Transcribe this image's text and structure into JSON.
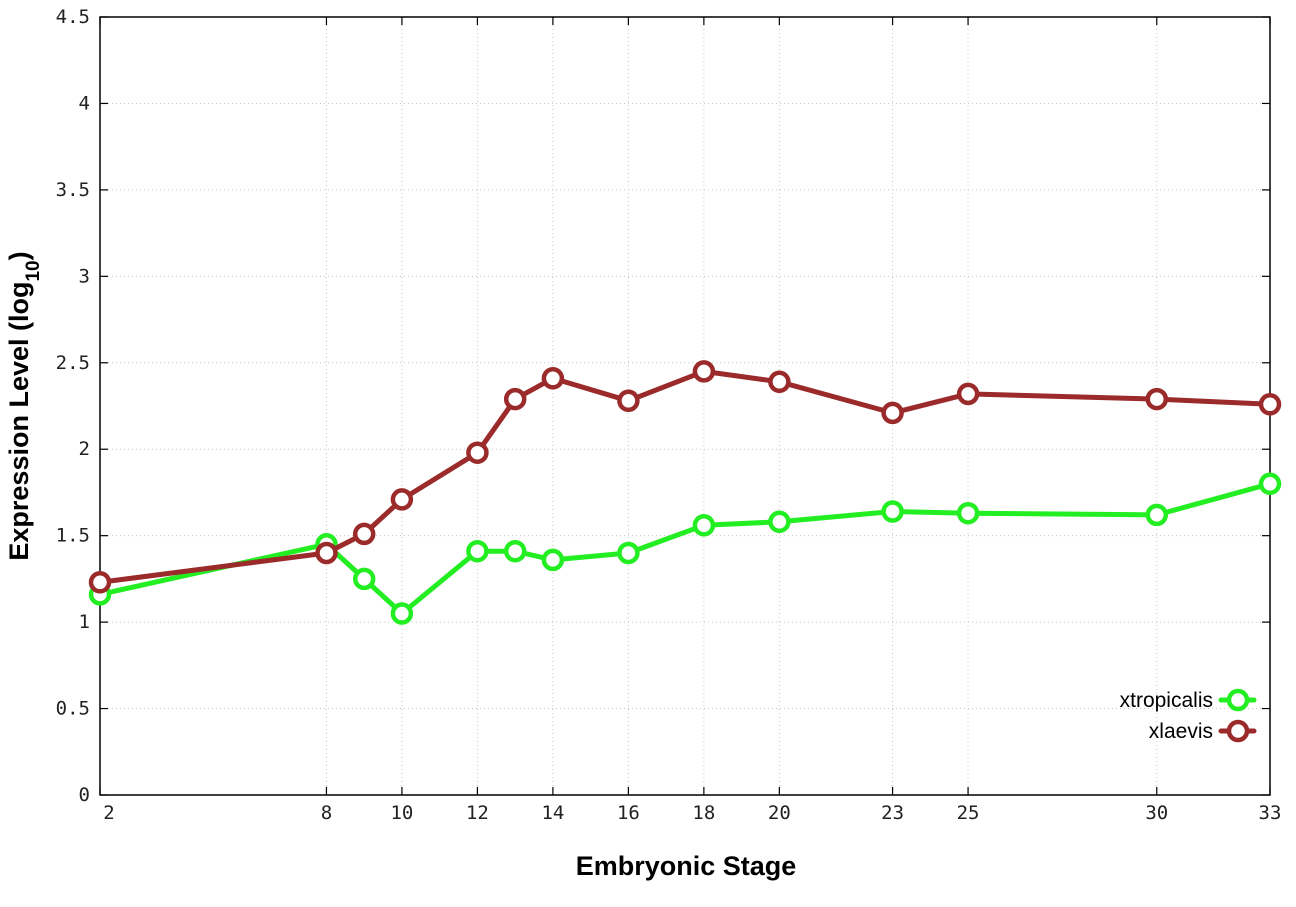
{
  "chart_data": {
    "type": "line",
    "title": "",
    "xlabel": "Embryonic Stage",
    "ylabel_main": "Expression Level (log",
    "ylabel_sub": "10",
    "ylabel_close": ")",
    "x": [
      2,
      8,
      9,
      10,
      12,
      13,
      14,
      16,
      18,
      20,
      23,
      25,
      30,
      33
    ],
    "xticks": [
      2,
      8,
      10,
      12,
      14,
      16,
      18,
      20,
      23,
      25,
      30,
      33
    ],
    "xlim": [
      2,
      33
    ],
    "ylim": [
      0,
      4.5
    ],
    "yticks": [
      0,
      0.5,
      1,
      1.5,
      2,
      2.5,
      3,
      3.5,
      4,
      4.5
    ],
    "ytick_labels": [
      "0",
      "0.5",
      "1",
      "1.5",
      "2",
      "2.5",
      "3",
      "3.5",
      "4",
      "4.5"
    ],
    "grid": true,
    "legend_position": "bottom-right",
    "series": [
      {
        "name": "xtropicalis",
        "color": "#22ee22",
        "values": [
          1.16,
          1.45,
          1.25,
          1.05,
          1.41,
          1.41,
          1.36,
          1.4,
          1.56,
          1.58,
          1.64,
          1.63,
          1.62,
          1.8
        ]
      },
      {
        "name": "xlaevis",
        "color": "#9b2a2a",
        "values": [
          1.23,
          1.4,
          1.51,
          1.71,
          1.98,
          2.29,
          2.41,
          2.28,
          2.45,
          2.39,
          2.21,
          2.32,
          2.29,
          2.26
        ]
      }
    ]
  }
}
